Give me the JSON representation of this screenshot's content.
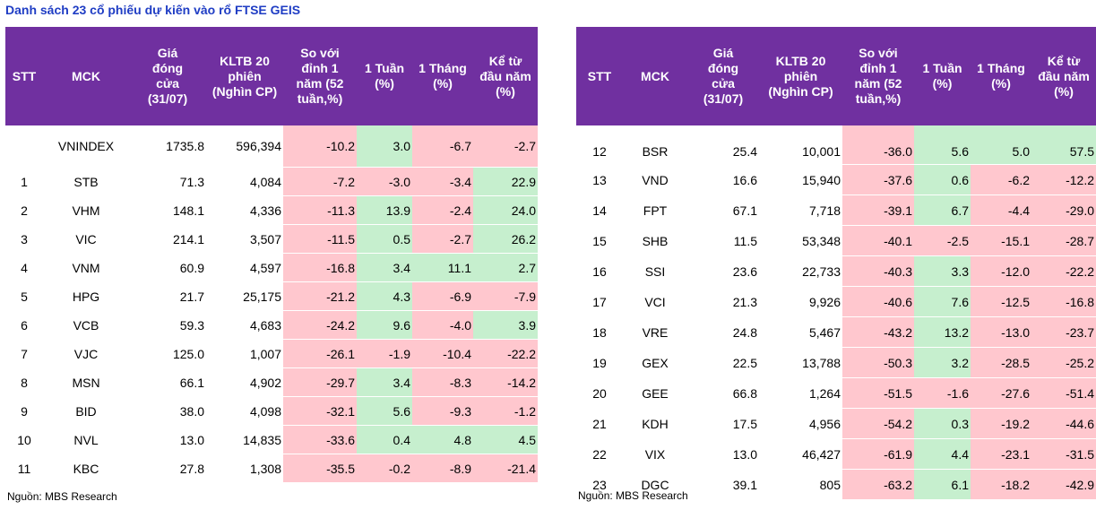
{
  "title": "Danh sách 23 cổ phiếu dự kiến vào rổ FTSE GEIS",
  "headers": {
    "stt": "STT",
    "mck": "MCK",
    "price": [
      "Giá",
      "đóng",
      "cửa",
      "(31/07)"
    ],
    "vol": [
      "KLTB 20",
      "phiên",
      "(Nghìn CP)"
    ],
    "peak": [
      "So với",
      "đỉnh 1",
      "năm (52",
      "tuần,%)"
    ],
    "w1": [
      "1 Tuần",
      "(%)"
    ],
    "m1": [
      "1 Tháng",
      "(%)"
    ],
    "ytd": [
      "Kể từ",
      "đầu năm",
      "(%)"
    ]
  },
  "left_rows": [
    {
      "stt": "",
      "mck": "VNINDEX",
      "price": "1735.8",
      "vol": "596,394",
      "peak": "-10.2",
      "w1": "3.0",
      "m1": "-6.7",
      "ytd": "-2.7"
    },
    {
      "stt": "1",
      "mck": "STB",
      "price": "71.3",
      "vol": "4,084",
      "peak": "-7.2",
      "w1": "-3.0",
      "m1": "-3.4",
      "ytd": "22.9"
    },
    {
      "stt": "2",
      "mck": "VHM",
      "price": "148.1",
      "vol": "4,336",
      "peak": "-11.3",
      "w1": "13.9",
      "m1": "-2.4",
      "ytd": "24.0"
    },
    {
      "stt": "3",
      "mck": "VIC",
      "price": "214.1",
      "vol": "3,507",
      "peak": "-11.5",
      "w1": "0.5",
      "m1": "-2.7",
      "ytd": "26.2"
    },
    {
      "stt": "4",
      "mck": "VNM",
      "price": "60.9",
      "vol": "4,597",
      "peak": "-16.8",
      "w1": "3.4",
      "m1": "11.1",
      "ytd": "2.7"
    },
    {
      "stt": "5",
      "mck": "HPG",
      "price": "21.7",
      "vol": "25,175",
      "peak": "-21.2",
      "w1": "4.3",
      "m1": "-6.9",
      "ytd": "-7.9"
    },
    {
      "stt": "6",
      "mck": "VCB",
      "price": "59.3",
      "vol": "4,683",
      "peak": "-24.2",
      "w1": "9.6",
      "m1": "-4.0",
      "ytd": "3.9"
    },
    {
      "stt": "7",
      "mck": "VJC",
      "price": "125.0",
      "vol": "1,007",
      "peak": "-26.1",
      "w1": "-1.9",
      "m1": "-10.4",
      "ytd": "-22.2"
    },
    {
      "stt": "8",
      "mck": "MSN",
      "price": "66.1",
      "vol": "4,902",
      "peak": "-29.7",
      "w1": "3.4",
      "m1": "-8.3",
      "ytd": "-14.2"
    },
    {
      "stt": "9",
      "mck": "BID",
      "price": "38.0",
      "vol": "4,098",
      "peak": "-32.1",
      "w1": "5.6",
      "m1": "-9.3",
      "ytd": "-1.2"
    },
    {
      "stt": "10",
      "mck": "NVL",
      "price": "13.0",
      "vol": "14,835",
      "peak": "-33.6",
      "w1": "0.4",
      "m1": "4.8",
      "ytd": "4.5"
    },
    {
      "stt": "11",
      "mck": "KBC",
      "price": "27.8",
      "vol": "1,308",
      "peak": "-35.5",
      "w1": "-0.2",
      "m1": "-8.9",
      "ytd": "-21.4"
    }
  ],
  "right_rows": [
    {
      "stt": "12",
      "mck": "BSR",
      "price": "25.4",
      "vol": "10,001",
      "peak": "-36.0",
      "w1": "5.6",
      "m1": "5.0",
      "ytd": "57.5"
    },
    {
      "stt": "13",
      "mck": "VND",
      "price": "16.6",
      "vol": "15,940",
      "peak": "-37.6",
      "w1": "0.6",
      "m1": "-6.2",
      "ytd": "-12.2"
    },
    {
      "stt": "14",
      "mck": "FPT",
      "price": "67.1",
      "vol": "7,718",
      "peak": "-39.1",
      "w1": "6.7",
      "m1": "-4.4",
      "ytd": "-29.0"
    },
    {
      "stt": "15",
      "mck": "SHB",
      "price": "11.5",
      "vol": "53,348",
      "peak": "-40.1",
      "w1": "-2.5",
      "m1": "-15.1",
      "ytd": "-28.7"
    },
    {
      "stt": "16",
      "mck": "SSI",
      "price": "23.6",
      "vol": "22,733",
      "peak": "-40.3",
      "w1": "3.3",
      "m1": "-12.0",
      "ytd": "-22.2"
    },
    {
      "stt": "17",
      "mck": "VCI",
      "price": "21.3",
      "vol": "9,926",
      "peak": "-40.6",
      "w1": "7.6",
      "m1": "-12.5",
      "ytd": "-16.8"
    },
    {
      "stt": "18",
      "mck": "VRE",
      "price": "24.8",
      "vol": "5,467",
      "peak": "-43.2",
      "w1": "13.2",
      "m1": "-13.0",
      "ytd": "-23.7"
    },
    {
      "stt": "19",
      "mck": "GEX",
      "price": "22.5",
      "vol": "13,788",
      "peak": "-50.3",
      "w1": "3.2",
      "m1": "-28.5",
      "ytd": "-25.2"
    },
    {
      "stt": "20",
      "mck": "GEE",
      "price": "66.8",
      "vol": "1,264",
      "peak": "-51.5",
      "w1": "-1.6",
      "m1": "-27.6",
      "ytd": "-51.4"
    },
    {
      "stt": "21",
      "mck": "KDH",
      "price": "17.5",
      "vol": "4,956",
      "peak": "-54.2",
      "w1": "0.3",
      "m1": "-19.2",
      "ytd": "-44.6"
    },
    {
      "stt": "22",
      "mck": "VIX",
      "price": "13.0",
      "vol": "46,427",
      "peak": "-61.9",
      "w1": "4.4",
      "m1": "-23.1",
      "ytd": "-31.5"
    },
    {
      "stt": "23",
      "mck": "DGC",
      "price": "39.1",
      "vol": "805",
      "peak": "-63.2",
      "w1": "6.1",
      "m1": "-18.2",
      "ytd": "-42.9"
    }
  ],
  "source": "Nguồn: MBS Research",
  "colors": {
    "header": "#7030a0",
    "positive": "#c6efce",
    "negative": "#ffc7ce",
    "title": "#1f3dc4"
  }
}
